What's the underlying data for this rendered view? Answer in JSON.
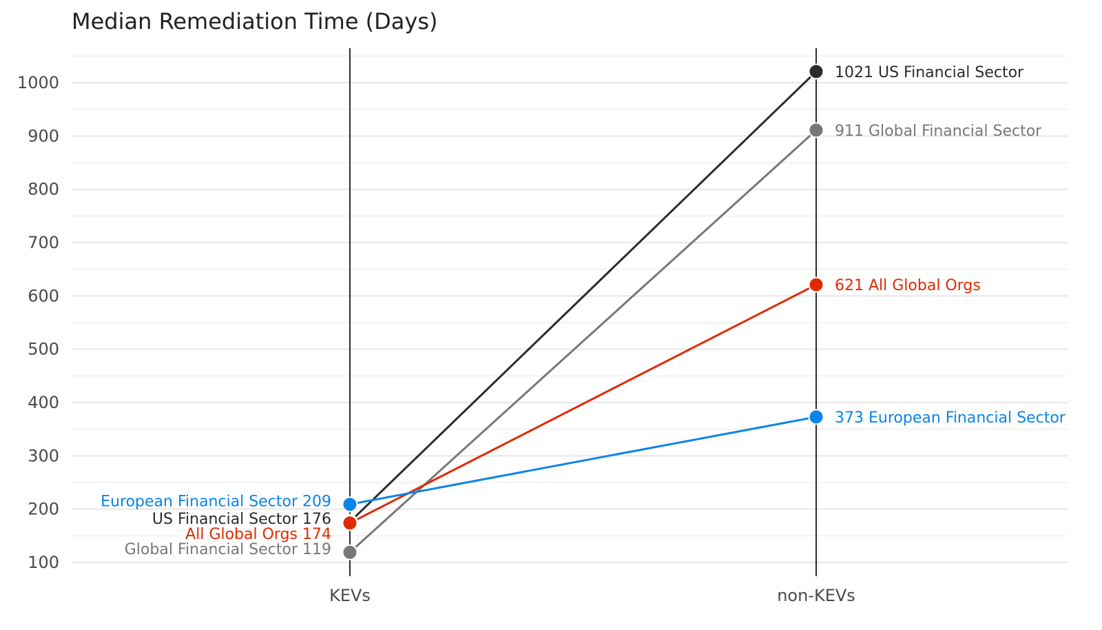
{
  "chart_data": {
    "type": "line",
    "title": "Median Remediation Time (Days)",
    "xlabel": "",
    "ylabel": "",
    "categories": [
      "KEVs",
      "non-KEVs"
    ],
    "ylim": [
      100,
      1050
    ],
    "yticks": [
      100,
      200,
      300,
      400,
      500,
      600,
      700,
      800,
      900,
      1000
    ],
    "grid": true,
    "legend": "none",
    "series": [
      {
        "name": "US Financial Sector",
        "color": "#2b2b2b",
        "values": [
          176,
          1021
        ],
        "left_label": "US Financial Sector 176",
        "right_label": "1021 US Financial Sector"
      },
      {
        "name": "Global Financial Sector",
        "color": "#777777",
        "values": [
          119,
          911
        ],
        "left_label": "Global Financial Sector 119",
        "right_label": "911 Global Financial Sector"
      },
      {
        "name": "All Global Orgs",
        "color": "#e02a00",
        "values": [
          174,
          621
        ],
        "left_label": "All Global Orgs 174",
        "right_label": "621 All Global Orgs"
      },
      {
        "name": "European Financial Sector",
        "color": "#0a84e8",
        "values": [
          209,
          373
        ],
        "left_label": "European Financial Sector 209",
        "right_label": "373 European Financial Sector"
      }
    ]
  }
}
